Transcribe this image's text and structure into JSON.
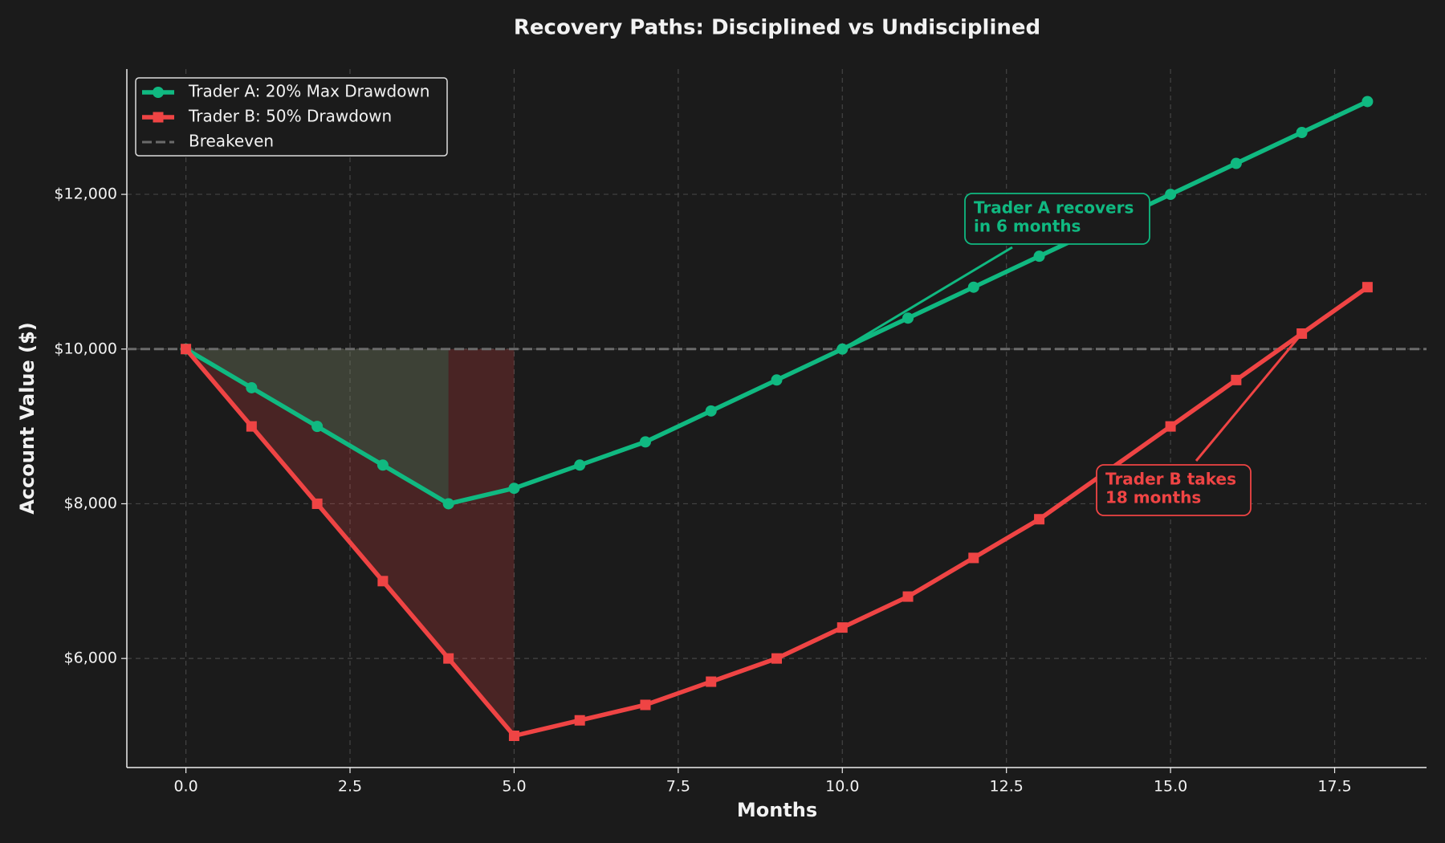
{
  "chart_data": {
    "type": "line",
    "title": "Recovery Paths: Disciplined vs Undisciplined",
    "xlabel": "Months",
    "ylabel": "Account Value ($)",
    "x": [
      0,
      1,
      2,
      3,
      4,
      5,
      6,
      7,
      8,
      9,
      10,
      11,
      12,
      13,
      14,
      15,
      16,
      17,
      18
    ],
    "series": [
      {
        "name": "Trader A: 20% Max Drawdown",
        "color": "#10b981",
        "marker": "circle",
        "values": [
          10000,
          9500,
          9000,
          8500,
          8000,
          8200,
          8500,
          8800,
          9200,
          9600,
          10000,
          10400,
          10800,
          11200,
          11600,
          12000,
          12400,
          12800,
          13200
        ]
      },
      {
        "name": "Trader B: 50% Drawdown",
        "color": "#ef4444",
        "marker": "square",
        "values": [
          10000,
          9000,
          8000,
          7000,
          6000,
          5000,
          5200,
          5400,
          5700,
          6000,
          6400,
          6800,
          7300,
          7800,
          8400,
          9000,
          9600,
          10200,
          10800
        ]
      }
    ],
    "breakeven": {
      "name": "Breakeven",
      "value": 10000,
      "color": "#6b6b6b"
    },
    "xlim": [
      -0.9,
      18.9
    ],
    "ylim": [
      4590,
      13620
    ],
    "xticks": [
      {
        "value": 0,
        "label": "0.0"
      },
      2.5,
      {
        "value": 5,
        "label": "5.0"
      },
      7.5,
      {
        "value": 10,
        "label": "10.0"
      },
      12.5,
      {
        "value": 15,
        "label": "15.0"
      },
      17.5
    ],
    "yticks": [
      {
        "value": 6000,
        "label": "$6,000"
      },
      {
        "value": 8000,
        "label": "$8,000"
      },
      {
        "value": 10000,
        "label": "$10,000"
      },
      {
        "value": 12000,
        "label": "$12,000"
      }
    ],
    "grid": true,
    "legend": "upper left",
    "annotations": [
      {
        "lines": [
          "Trader A recovers",
          "in 6 months"
        ],
        "color": "#10b981"
      },
      {
        "lines": [
          "Trader B takes",
          "18 months"
        ],
        "color": "#ef4444"
      }
    ]
  }
}
